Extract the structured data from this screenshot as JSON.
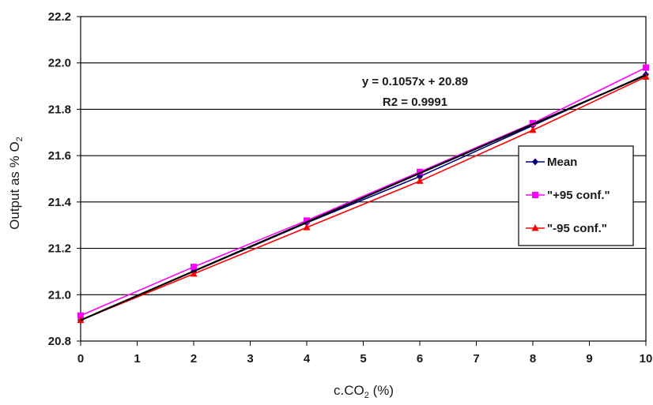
{
  "chart_data": {
    "type": "line",
    "xlabel_main": "c.CO",
    "xlabel_sub": "2",
    "xlabel_tail": " (%)",
    "ylabel_main": "Output as % O",
    "ylabel_sub": "2",
    "xlim": [
      0,
      10
    ],
    "ylim": [
      20.8,
      22.2
    ],
    "x_ticks": [
      0,
      1,
      2,
      3,
      4,
      5,
      6,
      7,
      8,
      9,
      10
    ],
    "y_ticks": [
      20.8,
      21.0,
      21.2,
      21.4,
      21.6,
      21.8,
      22.0,
      22.2
    ],
    "y_tick_labels": [
      "20.8",
      "21.0",
      "21.2",
      "21.4",
      "21.6",
      "21.8",
      "22.0",
      "22.2"
    ],
    "grid": "horizontal",
    "legend_placement": "right",
    "annotation": {
      "equation": "y = 0.1057x + 20.89",
      "r2": "R2 = 0.9991"
    },
    "series": [
      {
        "name": "Mean",
        "color": "#000080",
        "marker": "diamond",
        "x": [
          0,
          2,
          4,
          6,
          8,
          10
        ],
        "y": [
          20.89,
          21.1,
          21.31,
          21.51,
          21.73,
          21.95
        ]
      },
      {
        "name": "\"+95 conf.\"",
        "color": "#ff00ff",
        "marker": "square",
        "x": [
          0,
          2,
          4,
          6,
          8,
          10
        ],
        "y": [
          20.91,
          21.12,
          21.32,
          21.53,
          21.74,
          21.98
        ]
      },
      {
        "name": "\"-95 conf.\"",
        "color": "#ff0000",
        "marker": "triangle",
        "x": [
          0,
          2,
          4,
          6,
          8,
          10
        ],
        "y": [
          20.89,
          21.09,
          21.29,
          21.49,
          21.71,
          21.94
        ]
      }
    ],
    "trendline": {
      "color": "#000000",
      "slope": 0.1057,
      "intercept": 20.89
    }
  }
}
